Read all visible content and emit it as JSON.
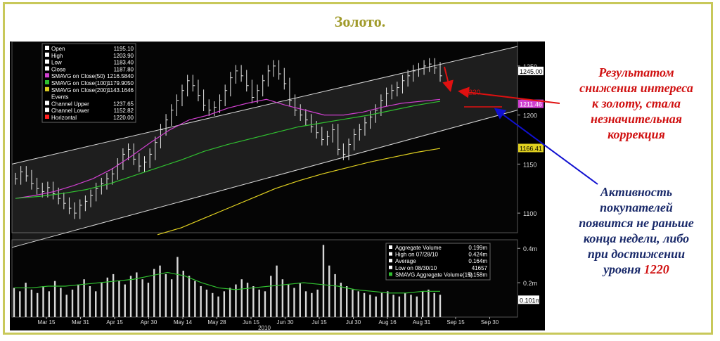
{
  "title": "Золото.",
  "annotations": {
    "red_note": [
      "Результатом",
      "снижения интереса",
      "к золоту, стала",
      "незначительная",
      "коррекция"
    ],
    "blue_note_lines": [
      "Активность",
      "покупателей",
      "появится не раньше",
      "конца недели, либо",
      "при достижении"
    ],
    "blue_note_last_prefix": "уровня ",
    "blue_note_level": "1220",
    "horizontal_label": "1220"
  },
  "colors": {
    "accent_red": "#d01010",
    "accent_blue": "#1a2a6a",
    "title": "#a09a2a",
    "frame": "#c8c85a"
  },
  "chart_data": [
    {
      "type": "line",
      "panel": "price",
      "x_ticks": [
        "Mar 15",
        "Mar 31",
        "Apr 15",
        "Apr 30",
        "May 14",
        "May 28",
        "Jun 15",
        "Jun 30",
        "Jul 15",
        "Jul 30",
        "Aug 16",
        "Aug 31",
        "Sep 15",
        "Sep 30"
      ],
      "year_label": "2010",
      "y_ticks": [
        1100,
        1150,
        1200,
        1250
      ],
      "ylim": [
        1080,
        1275
      ],
      "last_labels": [
        {
          "text": "1245.00",
          "value": 1245.0,
          "style": "white"
        },
        {
          "text": "1211.46",
          "value": 1211.46,
          "style": "magenta"
        },
        {
          "text": "1166.41",
          "value": 1166.41,
          "style": "yellow"
        }
      ],
      "legend": [
        {
          "label": "Open",
          "value": "1195.10",
          "color": "#ffffff"
        },
        {
          "label": "High",
          "value": "1203.90",
          "color": "#ffffff"
        },
        {
          "label": "Low",
          "value": "1183.40",
          "color": "#ffffff"
        },
        {
          "label": "Close",
          "value": "1187.80",
          "color": "#ffffff"
        },
        {
          "label": "SMAVG on Close(50)",
          "value": "1216.5840",
          "color": "#d040d0"
        },
        {
          "label": "SMAVG on Close(100)",
          "value": "1179.9050",
          "color": "#30c030"
        },
        {
          "label": "SMAVG on Close(200)",
          "value": "1143.1646",
          "color": "#e0d020"
        },
        {
          "label": "Events",
          "value": "",
          "color": ""
        },
        {
          "label": "Channel Upper",
          "value": "1237.65",
          "color": "#ffffff"
        },
        {
          "label": "Channel Lower",
          "value": "1152.82",
          "color": "#ffffff"
        },
        {
          "label": "Horizontal",
          "value": "1220.00",
          "color": "#ff2020"
        }
      ],
      "close": [
        1135,
        1142,
        1138,
        1130,
        1125,
        1122,
        1126,
        1120,
        1115,
        1110,
        1105,
        1100,
        1108,
        1112,
        1118,
        1125,
        1130,
        1135,
        1140,
        1150,
        1160,
        1165,
        1155,
        1148,
        1152,
        1160,
        1172,
        1185,
        1195,
        1205,
        1215,
        1225,
        1235,
        1230,
        1220,
        1210,
        1205,
        1208,
        1215,
        1225,
        1238,
        1245,
        1240,
        1230,
        1218,
        1225,
        1235,
        1245,
        1250,
        1242,
        1232,
        1215,
        1205,
        1200,
        1195,
        1188,
        1182,
        1175,
        1178,
        1185,
        1165,
        1160,
        1170,
        1180,
        1185,
        1192,
        1198,
        1205,
        1215,
        1222,
        1225,
        1228,
        1235,
        1240,
        1245,
        1247,
        1250,
        1252,
        1248,
        1240
      ],
      "channel_upper": {
        "start": 1150,
        "end": 1270
      },
      "channel_lower": {
        "start": 1065,
        "end": 1205
      },
      "sma50": [
        1115,
        1118,
        1122,
        1128,
        1135,
        1145,
        1158,
        1172,
        1185,
        1195,
        1200,
        1207,
        1212,
        1216,
        1210,
        1205,
        1200,
        1200,
        1203,
        1208,
        1212,
        1214,
        1216
      ],
      "sma100": [
        1115,
        1117,
        1120,
        1124,
        1130,
        1138,
        1146,
        1154,
        1163,
        1170,
        1176,
        1182,
        1188,
        1192,
        1196,
        1200,
        1205,
        1210,
        1214
      ],
      "sma200": [
        1078,
        1085,
        1095,
        1105,
        1115,
        1125,
        1133,
        1140,
        1146,
        1152,
        1157,
        1162,
        1166
      ],
      "horizontal": 1220
    },
    {
      "type": "bar",
      "panel": "volume",
      "y_ticks": [
        "0.4m",
        "0.2m"
      ],
      "last_label": "0.101m",
      "legend": [
        {
          "label": "Aggregate Volume",
          "value": "0.199m",
          "marker": "square-white"
        },
        {
          "label": "High on 07/28/10",
          "value": "0.424m",
          "marker": "up-arrow"
        },
        {
          "label": "Average",
          "value": "0.164m",
          "marker": "arrow-line"
        },
        {
          "label": "Low on 08/30/10",
          "value": "41657",
          "marker": "down-arrow"
        },
        {
          "label": "SMAVG Aggregate Volume(15)",
          "value": "0.158m",
          "marker": "square-green"
        }
      ],
      "values": [
        0.17,
        0.15,
        0.2,
        0.16,
        0.14,
        0.18,
        0.15,
        0.21,
        0.17,
        0.13,
        0.16,
        0.19,
        0.22,
        0.18,
        0.15,
        0.2,
        0.23,
        0.25,
        0.21,
        0.19,
        0.24,
        0.26,
        0.22,
        0.2,
        0.28,
        0.3,
        0.25,
        0.22,
        0.35,
        0.27,
        0.24,
        0.21,
        0.18,
        0.16,
        0.14,
        0.12,
        0.15,
        0.17,
        0.19,
        0.22,
        0.2,
        0.18,
        0.16,
        0.15,
        0.24,
        0.3,
        0.22,
        0.19,
        0.17,
        0.2,
        0.15,
        0.14,
        0.16,
        0.42,
        0.3,
        0.25,
        0.2,
        0.18,
        0.16,
        0.15,
        0.14,
        0.13,
        0.12,
        0.14,
        0.15,
        0.13,
        0.12,
        0.14,
        0.13,
        0.12,
        0.15,
        0.16,
        0.14,
        0.13
      ],
      "sma": [
        0.17,
        0.17,
        0.18,
        0.18,
        0.19,
        0.2,
        0.21,
        0.22,
        0.24,
        0.26,
        0.24,
        0.2,
        0.17,
        0.16,
        0.17,
        0.18,
        0.19,
        0.2,
        0.19,
        0.18,
        0.16,
        0.15,
        0.14,
        0.14,
        0.15,
        0.15
      ]
    }
  ]
}
